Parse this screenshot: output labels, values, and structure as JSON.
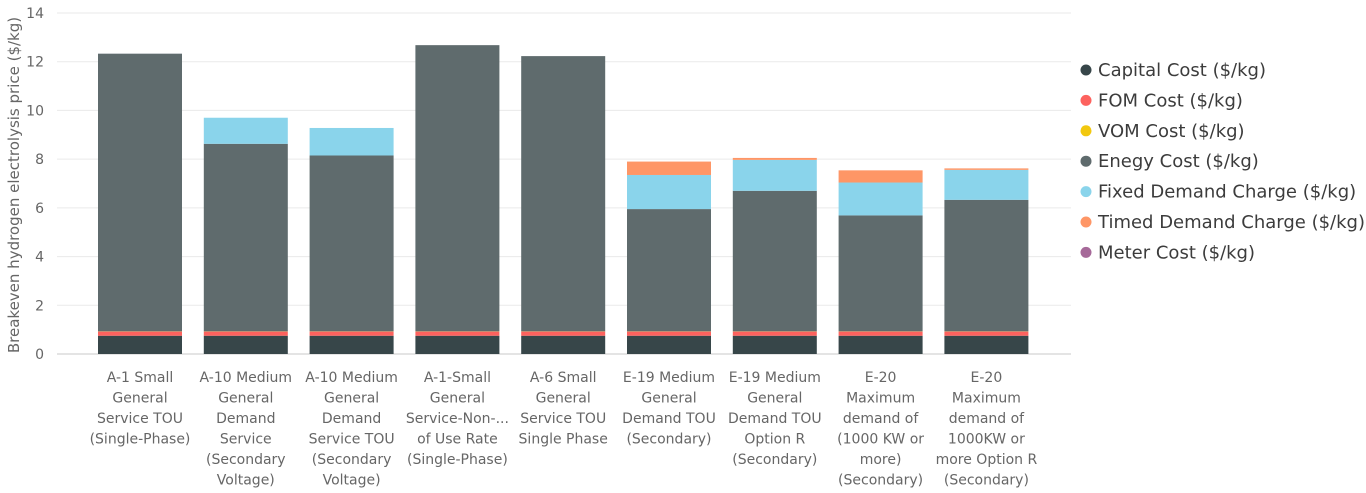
{
  "chart_data": {
    "type": "bar",
    "stacked": true,
    "ylabel": "Breakeven hydrogen electrolysis price ($/kg)",
    "xlabel": "",
    "ylim": [
      0,
      14
    ],
    "yticks": [
      0,
      2,
      4,
      6,
      8,
      10,
      12,
      14
    ],
    "grid": true,
    "legend_position": "right",
    "categories": [
      [
        "A-1 Small",
        "General",
        "Service TOU",
        "(Single-Phase)"
      ],
      [
        "A-10 Medium",
        "General",
        "Demand",
        "Service",
        "(Secondary",
        "Voltage)"
      ],
      [
        "A-10 Medium",
        "General",
        "Demand",
        "Service TOU",
        "(Secondary",
        "Voltage)"
      ],
      [
        "A-1-Small",
        "General",
        "Service-Non-...",
        "of Use Rate",
        "(Single-Phase)"
      ],
      [
        "A-6 Small",
        "General",
        "Service TOU",
        "Single Phase"
      ],
      [
        "E-19 Medium",
        "General",
        "Demand TOU",
        "(Secondary)"
      ],
      [
        "E-19 Medium",
        "General",
        "Demand TOU",
        "Option R",
        "(Secondary)"
      ],
      [
        "E-20",
        "Maximum",
        "demand of",
        "(1000 KW or",
        "more)",
        "(Secondary)"
      ],
      [
        "E-20",
        "Maximum",
        "demand of",
        "1000KW or",
        "more Option R",
        "(Secondary)"
      ]
    ],
    "series": [
      {
        "name": "Capital Cost ($/kg)",
        "color": "#374649",
        "values": [
          0.75,
          0.75,
          0.75,
          0.75,
          0.75,
          0.75,
          0.75,
          0.75,
          0.75
        ]
      },
      {
        "name": "FOM Cost ($/kg)",
        "color": "#FD625E",
        "values": [
          0.17,
          0.17,
          0.17,
          0.17,
          0.17,
          0.17,
          0.17,
          0.17,
          0.17
        ]
      },
      {
        "name": "VOM Cost ($/kg)",
        "color": "#F2C80F",
        "values": [
          0.01,
          0.01,
          0.01,
          0.01,
          0.01,
          0.01,
          0.01,
          0.01,
          0.01
        ]
      },
      {
        "name": "Enegy Cost ($/kg)",
        "color": "#5F6B6D",
        "values": [
          11.4,
          7.7,
          7.22,
          11.75,
          11.3,
          5.02,
          5.77,
          4.76,
          5.4
        ]
      },
      {
        "name": "Fixed Demand Charge ($/kg)",
        "color": "#8AD4EB",
        "values": [
          0,
          1.07,
          1.13,
          0,
          0,
          1.4,
          1.27,
          1.35,
          1.23
        ]
      },
      {
        "name": "Timed Demand Charge ($/kg)",
        "color": "#FE9666",
        "values": [
          0,
          0,
          0,
          0,
          0,
          0.55,
          0.08,
          0.5,
          0.06
        ]
      },
      {
        "name": "Meter Cost ($/kg)",
        "color": "#A66999",
        "values": [
          0,
          0,
          0,
          0,
          0,
          0,
          0,
          0,
          0
        ]
      }
    ]
  }
}
